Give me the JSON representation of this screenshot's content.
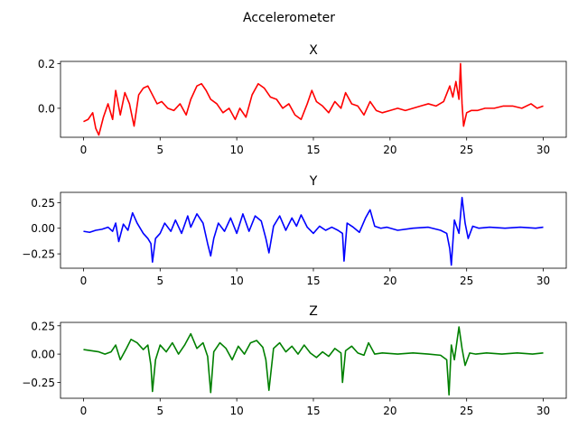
{
  "figure": {
    "title": "Accelerometer"
  },
  "chart_data": [
    {
      "type": "line",
      "title": "X",
      "color": "#ff0000",
      "xlim": [
        -1.5,
        31.5
      ],
      "ylim": [
        -0.13,
        0.21
      ],
      "xticks": [
        0,
        5,
        10,
        15,
        20,
        25,
        30
      ],
      "yticks": [
        0.0,
        0.2
      ],
      "ytick_labels": [
        "0.0",
        "0.2"
      ],
      "x": [
        0,
        0.3,
        0.6,
        0.8,
        1.0,
        1.3,
        1.6,
        1.9,
        2.1,
        2.4,
        2.7,
        3.0,
        3.3,
        3.6,
        3.9,
        4.2,
        4.5,
        4.8,
        5.1,
        5.5,
        5.9,
        6.3,
        6.7,
        7.0,
        7.4,
        7.7,
        8.0,
        8.3,
        8.7,
        9.1,
        9.5,
        9.9,
        10.2,
        10.6,
        11.0,
        11.4,
        11.8,
        12.2,
        12.6,
        13.0,
        13.4,
        13.8,
        14.2,
        14.6,
        14.9,
        15.2,
        15.6,
        16.0,
        16.4,
        16.8,
        17.1,
        17.5,
        17.9,
        18.3,
        18.7,
        19.1,
        19.5,
        20.0,
        20.5,
        21.0,
        21.5,
        22.0,
        22.5,
        23.0,
        23.5,
        23.9,
        24.1,
        24.3,
        24.5,
        24.6,
        24.7,
        24.8,
        25.0,
        25.3,
        25.7,
        26.2,
        26.8,
        27.4,
        28.0,
        28.6,
        29.2,
        29.6,
        30.0
      ],
      "y": [
        -0.06,
        -0.05,
        -0.02,
        -0.09,
        -0.12,
        -0.04,
        0.02,
        -0.05,
        0.08,
        -0.03,
        0.07,
        0.02,
        -0.08,
        0.06,
        0.09,
        0.1,
        0.06,
        0.02,
        0.03,
        0.0,
        -0.01,
        0.02,
        -0.03,
        0.04,
        0.1,
        0.11,
        0.08,
        0.04,
        0.02,
        -0.02,
        0.0,
        -0.05,
        0.0,
        -0.04,
        0.06,
        0.11,
        0.09,
        0.05,
        0.04,
        0.0,
        0.02,
        -0.03,
        -0.05,
        0.02,
        0.08,
        0.03,
        0.01,
        -0.02,
        0.03,
        0.0,
        0.07,
        0.02,
        0.01,
        -0.03,
        0.03,
        -0.01,
        -0.02,
        -0.01,
        0.0,
        -0.01,
        0.0,
        0.01,
        0.02,
        0.01,
        0.03,
        0.1,
        0.05,
        0.12,
        0.04,
        0.2,
        0.02,
        -0.08,
        -0.02,
        -0.01,
        -0.01,
        0.0,
        0.0,
        0.01,
        0.01,
        0.0,
        0.02,
        0.0,
        0.01
      ]
    },
    {
      "type": "line",
      "title": "Y",
      "color": "#0000ff",
      "xlim": [
        -1.5,
        31.5
      ],
      "ylim": [
        -0.39,
        0.35
      ],
      "xticks": [
        0,
        5,
        10,
        15,
        20,
        25,
        30
      ],
      "yticks": [
        -0.25,
        0.0,
        0.25
      ],
      "ytick_labels": [
        "−0.25",
        "0.00",
        "0.25"
      ],
      "x": [
        0,
        0.4,
        0.8,
        1.2,
        1.6,
        1.9,
        2.1,
        2.3,
        2.6,
        2.9,
        3.2,
        3.5,
        3.9,
        4.2,
        4.4,
        4.5,
        4.7,
        5.0,
        5.3,
        5.7,
        6.0,
        6.4,
        6.8,
        7.0,
        7.4,
        7.8,
        8.1,
        8.3,
        8.5,
        8.8,
        9.2,
        9.6,
        10.0,
        10.4,
        10.8,
        11.2,
        11.6,
        11.9,
        12.1,
        12.4,
        12.8,
        13.2,
        13.6,
        13.9,
        14.2,
        14.6,
        15.0,
        15.4,
        15.8,
        16.2,
        16.6,
        16.9,
        17.0,
        17.2,
        17.6,
        18.0,
        18.4,
        18.7,
        19.0,
        19.4,
        19.8,
        20.5,
        21.5,
        22.5,
        23.3,
        23.7,
        23.9,
        24.0,
        24.2,
        24.5,
        24.7,
        24.9,
        25.1,
        25.4,
        25.8,
        26.5,
        27.5,
        28.5,
        29.5,
        30.0
      ],
      "y": [
        -0.03,
        -0.04,
        -0.02,
        -0.01,
        0.01,
        -0.03,
        0.05,
        -0.13,
        0.04,
        -0.02,
        0.15,
        0.05,
        -0.05,
        -0.1,
        -0.15,
        -0.33,
        -0.1,
        -0.05,
        0.05,
        -0.03,
        0.08,
        -0.05,
        0.12,
        0.01,
        0.14,
        0.05,
        -0.15,
        -0.27,
        -0.1,
        0.05,
        -0.03,
        0.1,
        -0.05,
        0.14,
        -0.03,
        0.12,
        0.07,
        -0.1,
        -0.24,
        0.02,
        0.12,
        -0.02,
        0.1,
        0.02,
        0.13,
        0.01,
        -0.05,
        0.02,
        -0.02,
        0.01,
        -0.02,
        -0.05,
        -0.32,
        0.05,
        0.01,
        -0.04,
        0.1,
        0.18,
        0.02,
        0.0,
        0.01,
        -0.02,
        0.0,
        0.01,
        -0.02,
        -0.05,
        -0.2,
        -0.36,
        0.08,
        -0.05,
        0.3,
        0.05,
        -0.1,
        0.02,
        0.0,
        0.01,
        0.0,
        0.01,
        0.0,
        0.01
      ]
    },
    {
      "type": "line",
      "title": "Z",
      "color": "#008000",
      "xlim": [
        -1.5,
        31.5
      ],
      "ylim": [
        -0.39,
        0.28
      ],
      "xticks": [
        0,
        5,
        10,
        15,
        20,
        25,
        30
      ],
      "yticks": [
        -0.25,
        0.0,
        0.25
      ],
      "ytick_labels": [
        "−0.25",
        "0.00",
        "0.25"
      ],
      "x": [
        0,
        0.5,
        1.0,
        1.4,
        1.8,
        2.1,
        2.4,
        2.8,
        3.1,
        3.5,
        3.9,
        4.2,
        4.4,
        4.5,
        4.7,
        5.0,
        5.4,
        5.8,
        6.2,
        6.6,
        7.0,
        7.4,
        7.8,
        8.1,
        8.3,
        8.5,
        8.9,
        9.3,
        9.7,
        10.1,
        10.5,
        10.9,
        11.3,
        11.7,
        11.9,
        12.1,
        12.4,
        12.8,
        13.2,
        13.6,
        14.0,
        14.4,
        14.8,
        15.2,
        15.6,
        16.0,
        16.4,
        16.8,
        16.9,
        17.1,
        17.5,
        17.9,
        18.3,
        18.6,
        19.0,
        19.5,
        20.5,
        21.5,
        22.5,
        23.3,
        23.7,
        23.85,
        24.0,
        24.2,
        24.5,
        24.7,
        24.9,
        25.2,
        25.6,
        26.3,
        27.3,
        28.3,
        29.3,
        30.0
      ],
      "y": [
        0.04,
        0.03,
        0.02,
        0.0,
        0.02,
        0.08,
        -0.05,
        0.05,
        0.13,
        0.1,
        0.04,
        0.08,
        -0.1,
        -0.33,
        -0.05,
        0.08,
        0.02,
        0.1,
        0.0,
        0.08,
        0.18,
        0.05,
        0.1,
        -0.02,
        -0.34,
        0.02,
        0.1,
        0.05,
        -0.05,
        0.07,
        0.0,
        0.1,
        0.12,
        0.06,
        -0.05,
        -0.32,
        0.05,
        0.1,
        0.02,
        0.07,
        0.0,
        0.08,
        0.01,
        -0.03,
        0.02,
        -0.02,
        0.05,
        0.01,
        -0.25,
        0.03,
        0.07,
        0.01,
        -0.01,
        0.1,
        0.0,
        0.01,
        0.0,
        0.01,
        0.0,
        -0.01,
        -0.05,
        -0.36,
        0.08,
        -0.05,
        0.24,
        0.05,
        -0.1,
        0.01,
        0.0,
        0.01,
        0.0,
        0.01,
        0.0,
        0.01
      ]
    }
  ]
}
